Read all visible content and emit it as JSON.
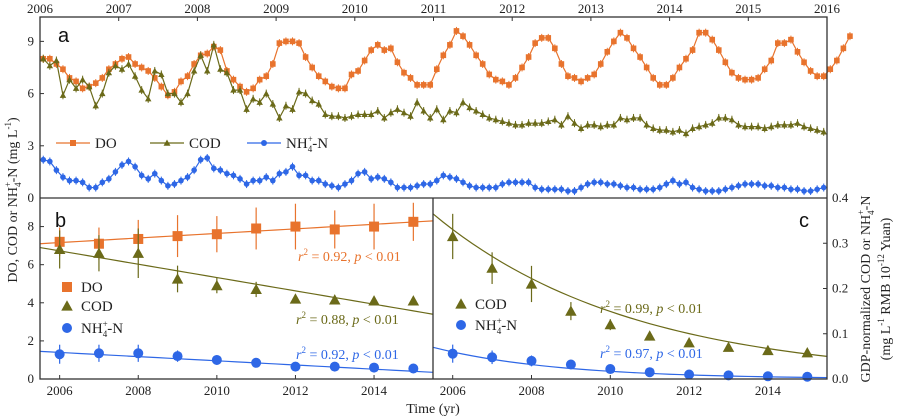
{
  "colors": {
    "DO": "#e8732d",
    "COD": "#6b6a19",
    "NH4": "#2e67e6",
    "axis": "#333333"
  },
  "chart_data": [
    {
      "panel": "a",
      "type": "line",
      "title": "",
      "panel_label": "a",
      "xlabel": "",
      "ylabel": "DO, COD or NH4+-N (mg L-1)",
      "xlim": [
        2006,
        2016
      ],
      "ylim": [
        0,
        10.4
      ],
      "x_ticks": [
        2006,
        2007,
        2008,
        2009,
        2010,
        2011,
        2012,
        2013,
        2014,
        2015,
        2016
      ],
      "x_tick_labels": [
        "2006",
        "2007",
        "2008",
        "2009",
        "2010",
        "2011",
        "2012",
        "2013",
        "2014",
        "2015",
        "2016"
      ],
      "y_ticks": [
        0,
        3,
        6,
        9
      ],
      "y_tick_labels": [
        "0",
        "3",
        "6",
        "9"
      ],
      "x_start": 2006.0,
      "x_step_months": 1,
      "legend": {
        "placement": "middle-left",
        "entries": [
          "DO",
          "COD",
          "NH4+-N"
        ]
      },
      "series": [
        {
          "name": "DO",
          "marker": "square",
          "values": [
            8.0,
            8.0,
            7.7,
            7.4,
            6.9,
            6.7,
            6.3,
            6.4,
            6.6,
            6.9,
            7.4,
            7.7,
            8.0,
            8.1,
            7.7,
            7.5,
            7.3,
            6.9,
            6.4,
            5.9,
            6.1,
            6.7,
            7.0,
            7.7,
            8.2,
            8.3,
            8.7,
            8.5,
            7.3,
            6.8,
            6.4,
            6.1,
            6.3,
            6.8,
            7.0,
            7.7,
            8.9,
            9.0,
            9.0,
            8.9,
            8.1,
            7.5,
            7.0,
            6.7,
            6.4,
            6.3,
            6.3,
            7.1,
            7.3,
            7.9,
            8.5,
            8.8,
            8.5,
            8.6,
            7.8,
            7.2,
            6.9,
            6.5,
            6.5,
            6.5,
            7.4,
            8.2,
            8.8,
            9.6,
            9.3,
            8.8,
            8.2,
            7.7,
            7.1,
            6.8,
            6.7,
            6.5,
            6.9,
            7.5,
            8.1,
            8.9,
            9.2,
            9.2,
            8.6,
            7.7,
            7.0,
            6.9,
            6.7,
            6.9,
            7.1,
            7.7,
            8.4,
            9.0,
            9.5,
            9.2,
            8.6,
            8.1,
            7.5,
            6.9,
            6.5,
            6.5,
            6.9,
            7.5,
            8.0,
            8.5,
            9.5,
            9.5,
            9.1,
            8.5,
            7.8,
            7.2,
            6.9,
            6.8,
            6.8,
            6.9,
            7.4,
            7.9,
            8.9,
            8.9,
            9.1,
            8.4,
            7.8,
            7.3,
            7.0,
            7.0,
            7.4,
            7.9,
            8.6,
            9.3
          ]
        },
        {
          "name": "COD",
          "marker": "triangle",
          "values": [
            8.0,
            7.6,
            7.9,
            5.9,
            6.8,
            6.3,
            6.8,
            6.4,
            5.3,
            6.0,
            7.2,
            7.6,
            7.4,
            7.7,
            7.0,
            6.2,
            5.7,
            7.3,
            7.1,
            6.0,
            6.0,
            5.5,
            6.0,
            7.3,
            8.2,
            7.3,
            8.8,
            7.4,
            7.2,
            6.2,
            6.2,
            5.1,
            5.7,
            5.5,
            6.0,
            5.4,
            4.6,
            5.3,
            5.1,
            6.1,
            6.0,
            5.6,
            5.4,
            4.8,
            4.7,
            4.7,
            4.6,
            4.7,
            4.8,
            4.8,
            4.8,
            5.0,
            4.6,
            4.9,
            5.1,
            4.9,
            4.7,
            5.5,
            5.0,
            4.6,
            5.1,
            4.5,
            5.0,
            4.9,
            5.5,
            5.2,
            5.0,
            4.8,
            4.6,
            4.5,
            4.4,
            4.3,
            4.2,
            4.2,
            4.3,
            4.3,
            4.3,
            4.4,
            4.5,
            4.2,
            4.7,
            4.3,
            4.0,
            4.2,
            4.2,
            4.1,
            4.2,
            4.2,
            4.6,
            4.5,
            4.6,
            4.6,
            4.2,
            4.0,
            3.9,
            3.9,
            3.8,
            3.9,
            3.7,
            4.0,
            4.1,
            4.2,
            4.3,
            4.6,
            4.6,
            4.5,
            4.2,
            4.1,
            4.1,
            4.1,
            4.0,
            4.1,
            4.2,
            4.2,
            4.2,
            4.3,
            4.1,
            4.0,
            3.9,
            3.8
          ]
        },
        {
          "name": "NH4+-N",
          "marker": "circle",
          "values": [
            2.2,
            2.1,
            1.6,
            1.2,
            1.0,
            1.0,
            0.9,
            0.6,
            0.6,
            0.9,
            1.1,
            1.5,
            1.9,
            2.1,
            1.8,
            1.3,
            1.1,
            1.4,
            1.0,
            0.7,
            0.8,
            1.0,
            1.2,
            1.6,
            2.2,
            2.3,
            1.7,
            1.6,
            1.4,
            1.3,
            1.1,
            0.8,
            1.0,
            1.0,
            1.2,
            1.0,
            1.4,
            1.5,
            1.8,
            1.3,
            1.3,
            1.0,
            1.0,
            0.8,
            0.7,
            0.6,
            0.8,
            1.0,
            1.4,
            1.5,
            1.1,
            1.2,
            1.1,
            0.9,
            0.6,
            0.6,
            0.6,
            0.7,
            0.8,
            0.8,
            1.0,
            1.3,
            1.2,
            1.1,
            0.9,
            0.7,
            0.6,
            0.6,
            0.6,
            0.6,
            0.8,
            0.9,
            0.9,
            0.9,
            0.9,
            0.6,
            0.5,
            0.5,
            0.5,
            0.5,
            0.4,
            0.4,
            0.6,
            0.8,
            0.9,
            0.9,
            0.8,
            0.8,
            0.7,
            0.6,
            0.6,
            0.5,
            0.5,
            0.5,
            0.6,
            0.8,
            1.0,
            0.8,
            0.9,
            0.6,
            0.5,
            0.4,
            0.4,
            0.4,
            0.5,
            0.6,
            0.7,
            0.8,
            0.8,
            0.8,
            0.7,
            0.7,
            0.6,
            0.6,
            0.5,
            0.5,
            0.4,
            0.4,
            0.5,
            0.6
          ]
        }
      ]
    },
    {
      "panel": "b",
      "type": "scatter",
      "panel_label": "b",
      "xlabel": "",
      "ylabel": "DO, COD or NH4+-N (mg L-1)",
      "xlim": [
        2005.5,
        2015.5
      ],
      "ylim": [
        0,
        9.5
      ],
      "x_ticks": [
        2006,
        2008,
        2010,
        2012,
        2014
      ],
      "x_tick_labels": [
        "2006",
        "2008",
        "2010",
        "2012",
        "2014"
      ],
      "y_ticks": [
        0,
        2,
        4,
        6,
        8
      ],
      "y_tick_labels": [
        "0",
        "2",
        "4",
        "6",
        "8"
      ],
      "x": [
        2006,
        2007,
        2008,
        2009,
        2010,
        2011,
        2012,
        2013,
        2014,
        2015
      ],
      "legend": {
        "placement": "middle-left",
        "entries": [
          "DO",
          "COD",
          "NH4+-N"
        ]
      },
      "series": [
        {
          "name": "DO",
          "marker": "square",
          "values": [
            7.2,
            7.1,
            7.35,
            7.5,
            7.6,
            7.9,
            8.0,
            7.85,
            8.0,
            8.25
          ],
          "errors": [
            0.75,
            0.85,
            1.0,
            1.1,
            0.95,
            1.1,
            1.2,
            1.0,
            1.2,
            1.0
          ],
          "fit": {
            "type": "linear",
            "from": 7.1,
            "to": 8.3
          },
          "annotation": "r2 = 0.92, p < 0.01"
        },
        {
          "name": "COD",
          "marker": "triangle",
          "values": [
            6.8,
            6.6,
            6.6,
            5.25,
            4.9,
            4.7,
            4.2,
            4.15,
            4.1,
            4.1
          ],
          "errors": [
            1.0,
            0.95,
            1.3,
            0.7,
            0.4,
            0.4,
            0.1,
            0.1,
            0.1,
            0.1
          ],
          "fit": {
            "type": "linear",
            "from": 6.9,
            "to": 3.4
          },
          "annotation": "r2 = 0.88, p < 0.01"
        },
        {
          "name": "NH4+-N",
          "marker": "circle",
          "values": [
            1.3,
            1.35,
            1.35,
            1.2,
            1.0,
            0.85,
            0.65,
            0.65,
            0.6,
            0.55
          ],
          "errors": [
            0.5,
            0.45,
            0.45,
            0.3,
            0.25,
            0.15,
            0.1,
            0.1,
            0.1,
            0.1
          ],
          "fit": {
            "type": "linear",
            "from": 1.45,
            "to": 0.35
          },
          "annotation": "r2 = 0.92, p < 0.01"
        }
      ]
    },
    {
      "panel": "c",
      "type": "scatter",
      "panel_label": "c",
      "xlabel": "Time (yr)",
      "ylabel": "GDP-normalized COD or NH4+-N (mg L-1 RMB 10-12 Yuan)",
      "xlim": [
        2005.5,
        2015.5
      ],
      "ylim": [
        0,
        0.4
      ],
      "x_ticks": [
        2006,
        2008,
        2010,
        2012,
        2014
      ],
      "x_tick_labels": [
        "2006",
        "2008",
        "2010",
        "2012",
        "2014"
      ],
      "y_ticks": [
        0.0,
        0.1,
        0.2,
        0.3,
        0.4
      ],
      "y_tick_labels": [
        "0.0",
        "0.1",
        "0.2",
        "0.3",
        "0.4"
      ],
      "x": [
        2006,
        2007,
        2008,
        2009,
        2010,
        2011,
        2012,
        2013,
        2014,
        2015
      ],
      "legend": {
        "placement": "middle-left",
        "entries": [
          "COD",
          "NH4+-N"
        ]
      },
      "series": [
        {
          "name": "COD",
          "marker": "triangle",
          "values": [
            0.315,
            0.245,
            0.21,
            0.15,
            0.12,
            0.095,
            0.08,
            0.07,
            0.063,
            0.058
          ],
          "errors": [
            0.05,
            0.035,
            0.04,
            0.02,
            0.012,
            0.01,
            0.008,
            0.007,
            0.006,
            0.006
          ],
          "fit": {
            "type": "exponential",
            "from": 0.365,
            "to": 0.05
          },
          "annotation": "r2 = 0.99, p < 0.01"
        },
        {
          "name": "NH4+-N",
          "marker": "circle",
          "values": [
            0.056,
            0.048,
            0.04,
            0.032,
            0.022,
            0.015,
            0.01,
            0.008,
            0.006,
            0.005
          ],
          "errors": [
            0.02,
            0.015,
            0.012,
            0.008,
            0.005,
            0.003,
            0.002,
            0.002,
            0.002,
            0.002
          ],
          "fit": {
            "type": "exponential",
            "from": 0.07,
            "to": 0.003
          },
          "annotation": "r2 = 0.97, p < 0.01"
        }
      ]
    }
  ],
  "text": {
    "ylabel_left_main": "DO, COD or NH",
    "ylabel_left_sup": "+",
    "ylabel_left_sub": "4",
    "ylabel_left_tail": "-N (mg L",
    "ylabel_left_exp": "-1",
    "ylabel_left_end": ")",
    "ylabel_right_line1_main": "GDP-normalized COD or NH",
    "ylabel_right_line1_sup": "+",
    "ylabel_right_line1_sub": "4",
    "ylabel_right_line1_tail": "-N",
    "ylabel_right_line2_a": "(mg L",
    "ylabel_right_line2_exp1": "-1",
    "ylabel_right_line2_b": " RMB 10",
    "ylabel_right_line2_exp2": "-12",
    "ylabel_right_line2_c": " Yuan)",
    "xlabel_bottom": "Time (yr)",
    "legend_DO": "DO",
    "legend_COD": "COD",
    "legend_NH4_main": "NH",
    "legend_NH4_sup": "+",
    "legend_NH4_sub": "4",
    "legend_NH4_tail": "-N",
    "annot_r": "r",
    "annot_sq": "2",
    "annot_eq": " = ",
    "annot_p": "p",
    "annot_lt": " < 0.01",
    "annot_comma": ", "
  }
}
